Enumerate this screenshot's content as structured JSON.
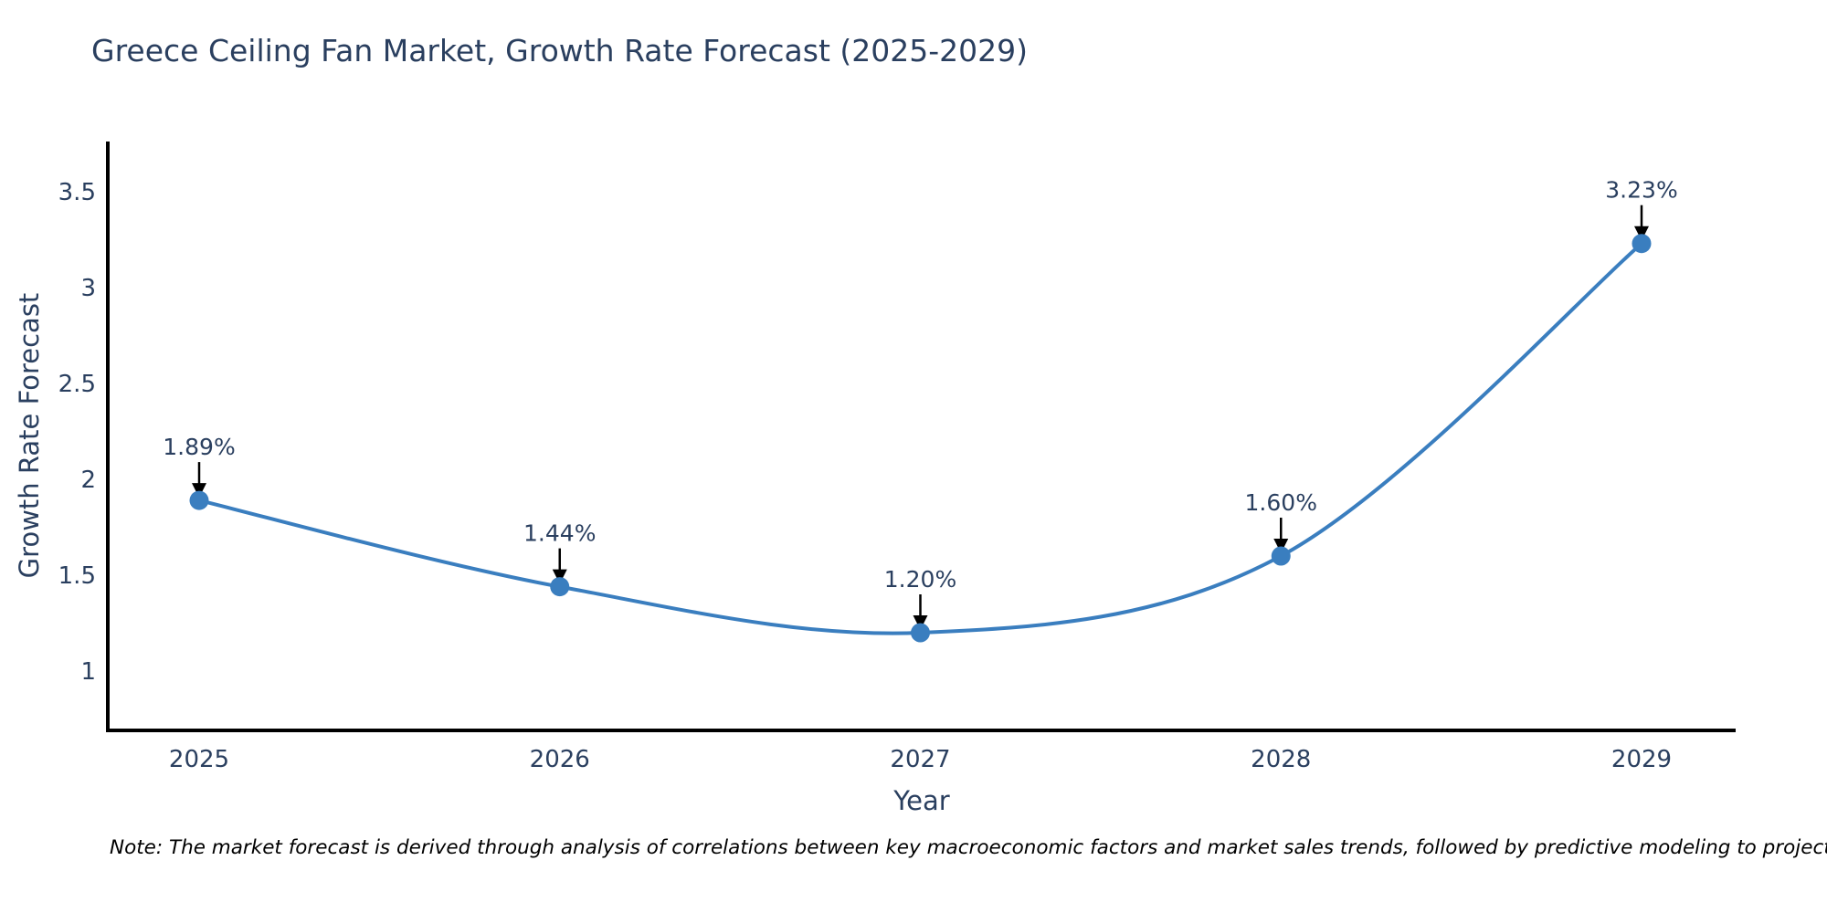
{
  "title": "Greece Ceiling Fan Market, Growth Rate Forecast (2025-2029)",
  "note": "Note: The market forecast is derived through analysis of correlations between key macroeconomic factors and market sales trends, followed by predictive modeling to project future sales",
  "chart_data": {
    "type": "line",
    "title": "Greece Ceiling Fan Market, Growth Rate Forecast (2025-2029)",
    "xlabel": "Year",
    "ylabel": "Growth Rate Forecast",
    "x": [
      2025,
      2026,
      2027,
      2028,
      2029
    ],
    "y": [
      1.89,
      1.44,
      1.2,
      1.6,
      3.23
    ],
    "point_labels": [
      "1.89%",
      "1.44%",
      "1.20%",
      "1.60%",
      "3.23%"
    ],
    "yticks": [
      1,
      1.5,
      2,
      2.5,
      3,
      3.5
    ],
    "ylim": [
      0.69,
      3.76
    ],
    "line_shape": "spline",
    "grid": false,
    "legend": "none",
    "annotation_style": "black down-arrow from label to marker",
    "colors": {
      "line": "#3a7ebf",
      "marker": "#3a7ebf",
      "axis": "#000000",
      "tick_text": "#2a3f5f",
      "annotation_text": "#2a3f5f",
      "annotation_arrow": "#000000",
      "background": "#ffffff"
    }
  }
}
